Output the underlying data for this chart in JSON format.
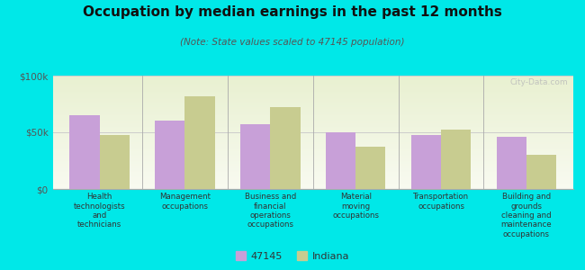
{
  "title": "Occupation by median earnings in the past 12 months",
  "subtitle": "(Note: State values scaled to 47145 population)",
  "background_color": "#00e8e8",
  "categories": [
    "Health\ntechnologists\nand\ntechnicians",
    "Management\noccupations",
    "Business and\nfinancial\noperations\noccupations",
    "Material\nmoving\noccupations",
    "Transportation\noccupations",
    "Building and\ngrounds\ncleaning and\nmaintenance\noccupations"
  ],
  "values_47145": [
    65000,
    60000,
    57000,
    50000,
    48000,
    46000
  ],
  "values_indiana": [
    48000,
    82000,
    72000,
    37000,
    52000,
    30000
  ],
  "color_47145": "#c8a0d8",
  "color_indiana": "#c8cc90",
  "ylim": [
    0,
    100000
  ],
  "yticks": [
    0,
    50000,
    100000
  ],
  "ytick_labels": [
    "$0",
    "$50k",
    "$100k"
  ],
  "legend_label_1": "47145",
  "legend_label_2": "Indiana",
  "watermark": "City-Data.com",
  "bar_width": 0.35
}
